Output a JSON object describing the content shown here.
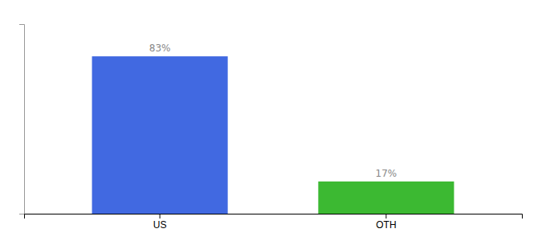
{
  "chart_data": {
    "type": "bar",
    "categories": [
      "US",
      "OTH"
    ],
    "values": [
      83,
      17
    ],
    "colors": [
      "#4169e1",
      "#3cb932"
    ],
    "data_labels": true,
    "value_labels": [
      "83%",
      "17%"
    ],
    "ylim": [
      0,
      100
    ],
    "grid": false,
    "tick_labels": "x"
  }
}
